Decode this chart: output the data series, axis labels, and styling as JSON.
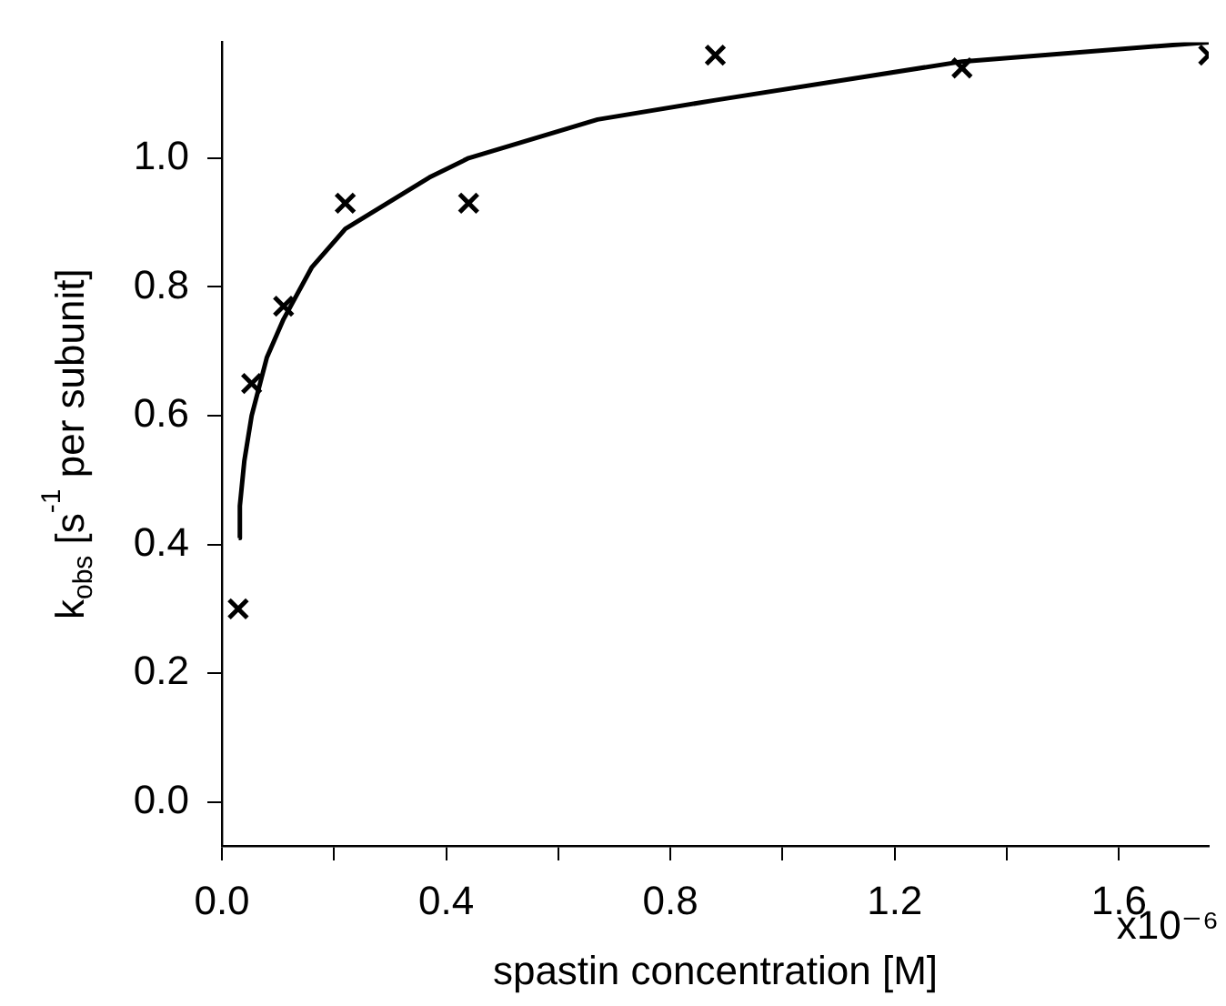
{
  "chart_data": {
    "type": "scatter",
    "xlabel": "spastin concentration [M]",
    "ylabel": "k$_{obs}$ [s$^{-1}$ per subunit]",
    "xlim": [
      0,
      1.76
    ],
    "ylim": [
      -0.068,
      1.18
    ],
    "xticks": [
      {
        "value": 0.0,
        "label": "0.0"
      },
      {
        "value": 0.2,
        "label": null
      },
      0.4,
      {
        "value": 0.6,
        "label": null
      },
      0.8,
      {
        "value": 1.0,
        "label": null
      },
      1.2,
      {
        "value": 1.4,
        "label": null
      },
      1.6
    ],
    "annotations": [
      "x10⁻⁶"
    ],
    "yticks": [
      {
        "value": 0.0,
        "label": "0.0"
      },
      0.2,
      0.4,
      0.6,
      0.8,
      {
        "value": 1.0,
        "label": "1.0"
      }
    ],
    "series": [
      {
        "type": "scatter",
        "color": "#000000",
        "marker": "cross",
        "x": [
          0.029,
          0.053,
          0.11,
          0.22,
          0.44,
          0.88,
          1.32,
          1.76
        ],
        "values": [
          0.3,
          0.65,
          0.77,
          0.93,
          0.93,
          1.16,
          1.14,
          1.16
        ]
      },
      {
        "type": "line",
        "color": "#000000",
        "marker": "none",
        "line_style": "solid",
        "x": [
          0.03,
          0.032,
          0.04,
          0.053,
          0.08,
          0.11,
          0.16,
          0.22,
          0.37,
          0.44,
          0.67,
          0.88,
          1.32,
          1.76
        ],
        "values": [
          0.41,
          0.46,
          0.53,
          0.6,
          0.69,
          0.75,
          0.83,
          0.89,
          0.97,
          1.0,
          1.06,
          1.09,
          1.15,
          1.18
        ]
      }
    ]
  }
}
